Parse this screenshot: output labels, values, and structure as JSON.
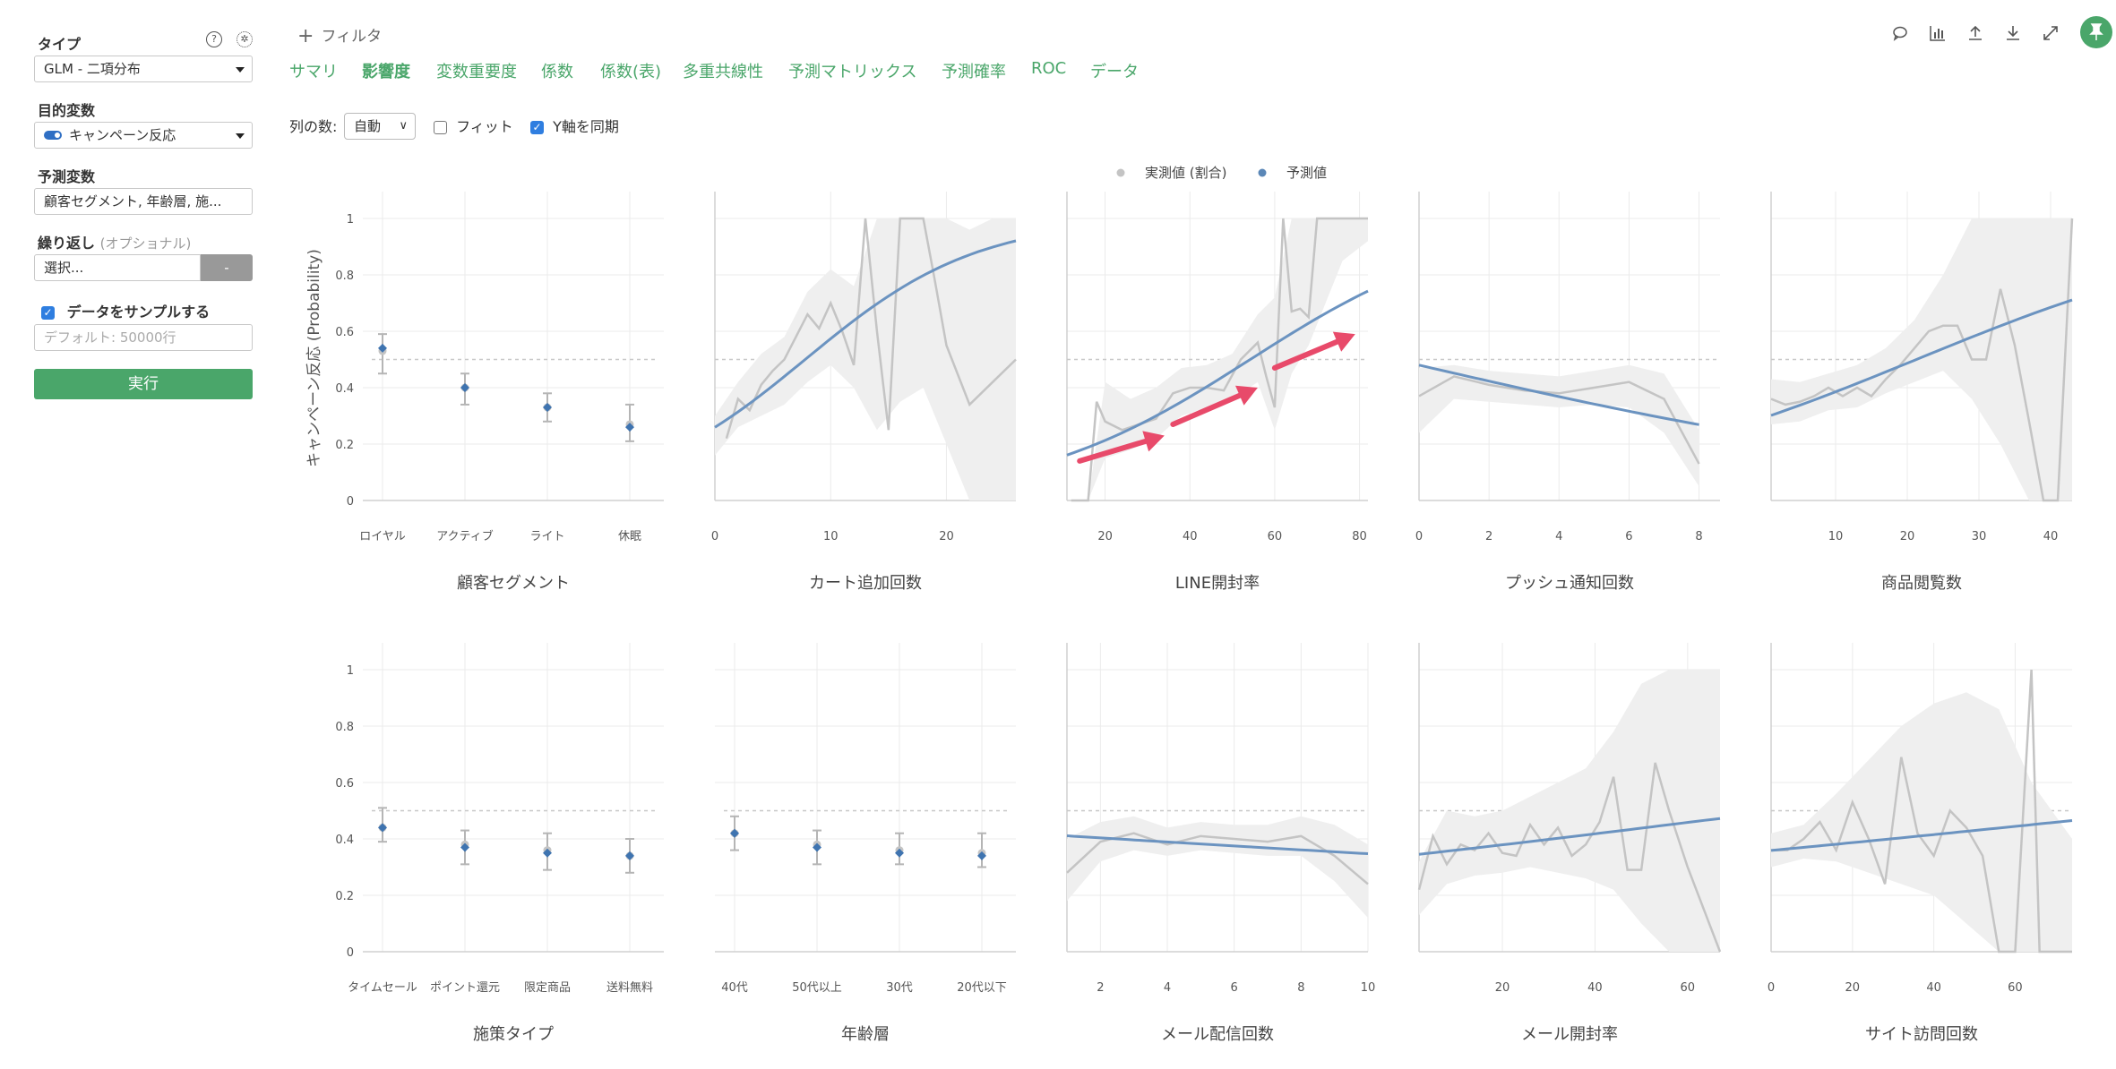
{
  "sidebar": {
    "type_label": "タイプ",
    "type_value": "GLM - 二項分布",
    "target_label": "目的変数",
    "target_value": "キャンペーン反応",
    "predictors_label": "予測変数",
    "predictors_value": "顧客セグメント, 年齢層, 施...",
    "repeat_label": "繰り返し",
    "repeat_optional": "(オプショナル)",
    "repeat_placeholder": "選択...",
    "repeat_button": "-",
    "sample_label": "データをサンプルする",
    "sample_placeholder": "デフォルト: 50000行",
    "run_label": "実行",
    "help_icon": "question-circle-icon",
    "settings_icon": "gear-icon"
  },
  "header": {
    "filter_add": "フィルタ",
    "tabs": [
      "サマリ",
      "影響度",
      "変数重要度",
      "係数",
      "係数(表)",
      "多重共線性",
      "予測マトリックス",
      "予測確率",
      "ROC",
      "データ"
    ],
    "active_tab": "影響度",
    "toolbar_icons": [
      "comment-icon",
      "chart-icon",
      "upload-icon",
      "download-icon",
      "expand-icon",
      "pin-icon"
    ]
  },
  "controls": {
    "cols_label": "列の数:",
    "cols_value": "自動",
    "fit_label": "フィット",
    "fit_checked": false,
    "sync_label": "Y軸を同期",
    "sync_checked": true
  },
  "chart_data": {
    "type": "line",
    "legend": [
      {
        "name": "実測値 (割合)",
        "color": "#c4c4c4"
      },
      {
        "name": "予測値",
        "color": "#5b87b7"
      }
    ],
    "legend_position": "top-center",
    "ylabel": "キャンペーン反応 (Probability)",
    "ylim": [
      0,
      1
    ],
    "yticks": [
      0,
      0.2,
      0.4,
      0.6,
      0.8,
      1
    ],
    "yticklabels": [
      "0",
      "0.2",
      "0.4",
      "0.6",
      "0.8",
      "1"
    ],
    "reference_line": 0.5,
    "colors": {
      "actual": "#c4c4c4",
      "band": "#efefef",
      "predicted": "#6b93c0",
      "point": "#3f74b0",
      "arrow": "#e84a6a"
    },
    "panels": [
      {
        "title": "顧客セグメント",
        "kind": "categorical",
        "categories": [
          "ロイヤル",
          "アクティブ",
          "ライト",
          "休眠"
        ],
        "predicted": [
          0.54,
          0.4,
          0.33,
          0.26
        ],
        "low": [
          0.45,
          0.34,
          0.28,
          0.21
        ],
        "high": [
          0.59,
          0.45,
          0.38,
          0.34
        ],
        "actual": [
          0.53,
          0.4,
          0.33,
          0.27
        ]
      },
      {
        "title": "カート追加回数",
        "kind": "numeric",
        "xlim": [
          0,
          26
        ],
        "xticks": [
          0,
          10,
          20
        ],
        "actual_x": [
          1,
          2,
          3,
          4,
          5,
          6,
          7,
          8,
          9,
          10,
          11,
          12,
          13,
          14,
          15,
          16,
          17,
          18,
          19,
          20,
          22,
          24,
          26
        ],
        "actual_y": [
          0.22,
          0.36,
          0.32,
          0.41,
          0.46,
          0.5,
          0.58,
          0.66,
          0.61,
          0.7,
          0.6,
          0.48,
          1.0,
          0.6,
          0.25,
          1.0,
          1.0,
          1.0,
          0.78,
          0.55,
          0.34,
          0.42,
          0.5
        ],
        "band_x": [
          0,
          2,
          4,
          6,
          8,
          10,
          12,
          14,
          16,
          18,
          20,
          22,
          24,
          26
        ],
        "band_low": [
          0.16,
          0.26,
          0.3,
          0.34,
          0.42,
          0.48,
          0.4,
          0.25,
          0.35,
          0.4,
          0.2,
          0.0,
          0.0,
          0.0
        ],
        "band_high": [
          0.3,
          0.42,
          0.52,
          0.58,
          0.74,
          0.82,
          0.76,
          1.0,
          1.0,
          1.0,
          1.0,
          0.96,
          1.0,
          1.0
        ],
        "pred_x": [
          0,
          26
        ],
        "pred_logit": [
          -1.05,
          2.45
        ]
      },
      {
        "title": "LINE開封率",
        "kind": "numeric",
        "xlim": [
          11,
          82
        ],
        "xticks": [
          20,
          40,
          60,
          80
        ],
        "actual_x": [
          12,
          14,
          16,
          18,
          20,
          24,
          28,
          32,
          36,
          40,
          44,
          48,
          52,
          56,
          58,
          60,
          62,
          64,
          66,
          68,
          70,
          74,
          78,
          82
        ],
        "actual_y": [
          0.0,
          0.0,
          0.0,
          0.35,
          0.28,
          0.25,
          0.27,
          0.29,
          0.38,
          0.4,
          0.4,
          0.39,
          0.5,
          0.56,
          0.44,
          0.33,
          1.0,
          0.67,
          0.68,
          0.65,
          1.0,
          1.0,
          1.0,
          1.0
        ],
        "band_x": [
          11,
          16,
          20,
          26,
          32,
          38,
          44,
          50,
          56,
          60,
          64,
          68,
          72,
          76,
          82
        ],
        "band_low": [
          0.0,
          0.0,
          0.15,
          0.18,
          0.22,
          0.3,
          0.33,
          0.36,
          0.42,
          0.25,
          0.45,
          0.55,
          0.7,
          0.85,
          0.92
        ],
        "band_high": [
          0.0,
          0.0,
          0.42,
          0.36,
          0.4,
          0.47,
          0.48,
          0.52,
          0.66,
          0.72,
          1.0,
          1.0,
          1.0,
          1.0,
          1.0
        ],
        "pred_x": [
          11,
          82
        ],
        "pred_logit": [
          -1.65,
          1.06
        ],
        "annotations": [
          {
            "from": [
              14,
              0.14
            ],
            "to": [
              34,
              0.23
            ]
          },
          {
            "from": [
              36,
              0.27
            ],
            "to": [
              56,
              0.4
            ]
          },
          {
            "from": [
              60,
              0.47
            ],
            "to": [
              79,
              0.59
            ]
          }
        ]
      },
      {
        "title": "プッシュ通知回数",
        "kind": "numeric",
        "xlim": [
          0,
          8.6
        ],
        "xticks": [
          0,
          2,
          4,
          6,
          8
        ],
        "actual_x": [
          0,
          1,
          2,
          3,
          4,
          5,
          6,
          7,
          8
        ],
        "actual_y": [
          0.37,
          0.44,
          0.41,
          0.39,
          0.38,
          0.4,
          0.42,
          0.36,
          0.13
        ],
        "band_x": [
          0,
          1,
          2,
          3,
          4,
          5,
          6,
          7,
          8
        ],
        "band_low": [
          0.24,
          0.36,
          0.35,
          0.34,
          0.33,
          0.34,
          0.33,
          0.24,
          0.05
        ],
        "band_high": [
          0.47,
          0.48,
          0.46,
          0.45,
          0.44,
          0.46,
          0.48,
          0.45,
          0.25
        ],
        "pred_x": [
          0,
          8
        ],
        "pred_logit": [
          -0.08,
          -1.0
        ]
      },
      {
        "title": "商品閲覧数",
        "kind": "numeric",
        "xlim": [
          1,
          43
        ],
        "xticks": [
          10,
          20,
          30,
          40
        ],
        "actual_x": [
          1,
          3,
          5,
          7,
          9,
          11,
          13,
          15,
          17,
          19,
          21,
          23,
          25,
          27,
          29,
          31,
          33,
          35,
          37,
          39,
          41,
          43
        ],
        "actual_y": [
          0.36,
          0.34,
          0.35,
          0.37,
          0.4,
          0.37,
          0.4,
          0.37,
          0.43,
          0.48,
          0.54,
          0.6,
          0.62,
          0.62,
          0.5,
          0.5,
          0.75,
          0.55,
          0.28,
          0.0,
          0.0,
          1.0
        ],
        "band_x": [
          1,
          5,
          9,
          13,
          17,
          21,
          25,
          29,
          33,
          37,
          41,
          43
        ],
        "band_low": [
          0.27,
          0.28,
          0.32,
          0.33,
          0.38,
          0.42,
          0.46,
          0.36,
          0.2,
          0.0,
          0.0,
          0.0
        ],
        "band_high": [
          0.43,
          0.42,
          0.45,
          0.48,
          0.54,
          0.64,
          0.8,
          1.0,
          1.0,
          1.0,
          1.0,
          1.0
        ],
        "pred_x": [
          1,
          43
        ],
        "pred_logit": [
          -0.84,
          0.9
        ]
      },
      {
        "title": "施策タイプ",
        "kind": "categorical",
        "categories": [
          "タイムセール",
          "ポイント還元",
          "限定商品",
          "送料無料"
        ],
        "predicted": [
          0.44,
          0.37,
          0.35,
          0.34
        ],
        "low": [
          0.39,
          0.31,
          0.29,
          0.28
        ],
        "high": [
          0.51,
          0.43,
          0.42,
          0.4
        ],
        "actual": [
          0.44,
          0.38,
          0.36,
          0.34
        ]
      },
      {
        "title": "年齢層",
        "kind": "categorical",
        "categories": [
          "40代",
          "50代以上",
          "30代",
          "20代以下"
        ],
        "predicted": [
          0.42,
          0.37,
          0.35,
          0.34
        ],
        "low": [
          0.36,
          0.31,
          0.31,
          0.3
        ],
        "high": [
          0.48,
          0.43,
          0.42,
          0.42
        ],
        "actual": [
          0.42,
          0.38,
          0.36,
          0.35
        ]
      },
      {
        "title": "メール配信回数",
        "kind": "numeric",
        "xlim": [
          1,
          10
        ],
        "xticks": [
          2,
          4,
          6,
          8,
          10
        ],
        "actual_x": [
          1,
          2,
          3,
          4,
          5,
          6,
          7,
          8,
          9,
          10
        ],
        "actual_y": [
          0.28,
          0.39,
          0.42,
          0.38,
          0.41,
          0.4,
          0.39,
          0.41,
          0.34,
          0.24
        ],
        "band_x": [
          1,
          2,
          3,
          4,
          5,
          6,
          7,
          8,
          9,
          10
        ],
        "band_low": [
          0.18,
          0.32,
          0.36,
          0.34,
          0.36,
          0.35,
          0.34,
          0.34,
          0.25,
          0.12
        ],
        "band_high": [
          0.4,
          0.46,
          0.48,
          0.44,
          0.46,
          0.45,
          0.45,
          0.48,
          0.45,
          0.38
        ],
        "pred_x": [
          1,
          10
        ],
        "pred_logit": [
          -0.36,
          -0.63
        ]
      },
      {
        "title": "メール開封率",
        "kind": "numeric",
        "xlim": [
          2,
          67
        ],
        "xticks": [
          20,
          40,
          60
        ],
        "actual_x": [
          2,
          5,
          8,
          11,
          14,
          17,
          20,
          23,
          26,
          29,
          32,
          35,
          38,
          41,
          44,
          47,
          50,
          53,
          56,
          60,
          67
        ],
        "actual_y": [
          0.22,
          0.41,
          0.31,
          0.38,
          0.36,
          0.42,
          0.35,
          0.34,
          0.45,
          0.38,
          0.44,
          0.34,
          0.38,
          0.46,
          0.62,
          0.29,
          0.29,
          0.67,
          0.5,
          0.3,
          0.0
        ],
        "band_x": [
          2,
          8,
          14,
          20,
          26,
          32,
          38,
          44,
          50,
          56,
          62,
          67
        ],
        "band_low": [
          0.13,
          0.24,
          0.27,
          0.28,
          0.3,
          0.28,
          0.26,
          0.22,
          0.1,
          0.0,
          0.0,
          0.0
        ],
        "band_high": [
          0.32,
          0.5,
          0.48,
          0.5,
          0.55,
          0.6,
          0.65,
          0.78,
          0.95,
          1.0,
          1.0,
          1.0
        ],
        "pred_x": [
          2,
          67
        ],
        "pred_logit": [
          -0.64,
          -0.11
        ]
      },
      {
        "title": "サイト訪問回数",
        "kind": "numeric",
        "xlim": [
          0,
          74
        ],
        "xticks": [
          0,
          20,
          40,
          60
        ],
        "actual_x": [
          0,
          4,
          8,
          12,
          16,
          20,
          24,
          28,
          32,
          36,
          40,
          44,
          48,
          52,
          56,
          60,
          64,
          66,
          70,
          74
        ],
        "actual_y": [
          0.36,
          0.36,
          0.4,
          0.46,
          0.36,
          0.53,
          0.4,
          0.24,
          0.69,
          0.42,
          0.34,
          0.5,
          0.44,
          0.34,
          0.0,
          0.0,
          1.0,
          0.0,
          0.0,
          0.0
        ],
        "band_x": [
          0,
          8,
          16,
          24,
          32,
          40,
          48,
          56,
          64,
          74
        ],
        "band_low": [
          0.3,
          0.33,
          0.32,
          0.28,
          0.24,
          0.2,
          0.1,
          0.0,
          0.0,
          0.0
        ],
        "band_high": [
          0.42,
          0.45,
          0.56,
          0.68,
          0.8,
          0.88,
          0.92,
          0.86,
          0.6,
          0.4
        ],
        "pred_x": [
          0,
          74
        ],
        "pred_logit": [
          -0.58,
          -0.14
        ]
      }
    ]
  }
}
